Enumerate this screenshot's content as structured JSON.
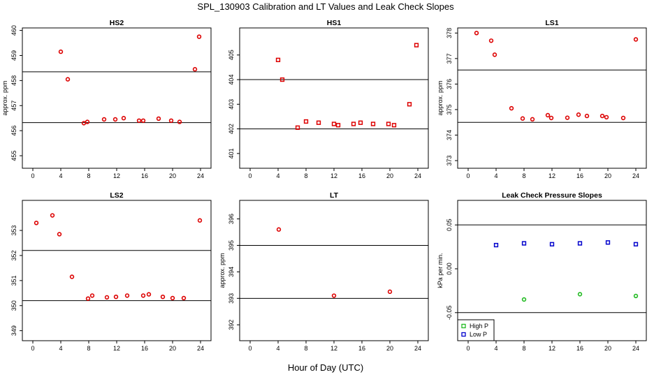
{
  "figure": {
    "title": "SPL_130903  Calibration and LT Values and Leak Check Slopes",
    "xlabel": "Hour of Day (UTC)"
  },
  "chart_data": [
    {
      "type": "scatter",
      "title": "HS2",
      "ylabel": "approx. ppm",
      "xlim": [
        -1.5,
        25.5
      ],
      "ylim": [
        454.5,
        460.1
      ],
      "xticks": [
        0,
        4,
        8,
        12,
        16,
        20,
        24
      ],
      "yticks": [
        455,
        456,
        457,
        458,
        459,
        460
      ],
      "hlines": [
        458.35,
        456.32
      ],
      "series": [
        {
          "name": "calibration",
          "color": "#dd0000",
          "marker": "circle",
          "x": [
            4.0,
            5.0,
            7.3,
            7.8,
            10.2,
            11.8,
            13.0,
            15.2,
            15.8,
            18.0,
            19.8,
            21.0,
            23.2,
            23.8
          ],
          "y": [
            459.15,
            458.05,
            456.3,
            456.35,
            456.45,
            456.45,
            456.5,
            456.4,
            456.4,
            456.48,
            456.4,
            456.35,
            458.45,
            459.75
          ]
        }
      ]
    },
    {
      "type": "scatter",
      "title": "HS1",
      "ylabel": "",
      "xlim": [
        -1.5,
        25.5
      ],
      "ylim": [
        400.4,
        406.1
      ],
      "xticks": [
        0,
        4,
        8,
        12,
        16,
        20,
        24
      ],
      "yticks": [
        401,
        402,
        403,
        404,
        405
      ],
      "hlines": [
        404.0,
        402.0
      ],
      "series": [
        {
          "name": "calibration",
          "color": "#dd0000",
          "marker": "square",
          "x": [
            4.0,
            4.6,
            6.8,
            8.0,
            9.8,
            12.0,
            12.6,
            14.8,
            15.8,
            17.6,
            19.8,
            20.6,
            22.8,
            23.8
          ],
          "y": [
            404.8,
            404.0,
            402.05,
            402.3,
            402.25,
            402.2,
            402.15,
            402.2,
            402.25,
            402.2,
            402.2,
            402.15,
            403.0,
            405.4
          ]
        }
      ]
    },
    {
      "type": "scatter",
      "title": "LS1",
      "ylabel": "approx. ppm",
      "xlim": [
        -1.5,
        25.5
      ],
      "ylim": [
        372.7,
        378.2
      ],
      "xticks": [
        0,
        4,
        8,
        12,
        16,
        20,
        24
      ],
      "yticks": [
        373,
        374,
        375,
        376,
        377,
        378
      ],
      "hlines": [
        376.55,
        374.5
      ],
      "series": [
        {
          "name": "calibration",
          "color": "#dd0000",
          "marker": "circle",
          "x": [
            1.2,
            3.3,
            3.8,
            6.2,
            7.8,
            9.2,
            11.4,
            11.9,
            14.2,
            15.8,
            17.0,
            19.2,
            19.8,
            22.2,
            24.0
          ],
          "y": [
            378.0,
            377.7,
            377.15,
            375.05,
            374.65,
            374.62,
            374.78,
            374.67,
            374.68,
            374.8,
            374.75,
            374.75,
            374.7,
            374.67,
            377.75
          ]
        }
      ]
    },
    {
      "type": "scatter",
      "title": "LS2",
      "ylabel": "",
      "xlim": [
        -1.5,
        25.5
      ],
      "ylim": [
        348.6,
        354.2
      ],
      "xticks": [
        0,
        4,
        8,
        12,
        16,
        20,
        24
      ],
      "yticks": [
        349,
        350,
        351,
        352,
        353
      ],
      "hlines": [
        352.2,
        350.2
      ],
      "series": [
        {
          "name": "calibration",
          "color": "#dd0000",
          "marker": "circle",
          "x": [
            0.5,
            2.8,
            3.8,
            5.6,
            7.9,
            8.5,
            10.6,
            11.9,
            13.5,
            15.8,
            16.6,
            18.6,
            20.0,
            21.6,
            23.9
          ],
          "y": [
            353.3,
            353.6,
            352.85,
            351.15,
            350.28,
            350.4,
            350.33,
            350.35,
            350.4,
            350.4,
            350.45,
            350.35,
            350.3,
            350.3,
            353.4
          ]
        }
      ]
    },
    {
      "type": "scatter",
      "title": "LT",
      "ylabel": "approx. ppm",
      "xlim": [
        -1.5,
        25.5
      ],
      "ylim": [
        391.4,
        396.7
      ],
      "xticks": [
        0,
        4,
        8,
        12,
        16,
        20,
        24
      ],
      "yticks": [
        392,
        393,
        394,
        395,
        396
      ],
      "hlines": [
        395.0,
        393.0
      ],
      "series": [
        {
          "name": "LT",
          "color": "#dd0000",
          "marker": "circle",
          "x": [
            4.1,
            12.0,
            20.0
          ],
          "y": [
            395.6,
            393.1,
            393.25
          ]
        }
      ]
    },
    {
      "type": "scatter",
      "title": "Leak Check Pressure Slopes",
      "ylabel": "kPa per min.",
      "xlim": [
        -1.5,
        25.5
      ],
      "ylim": [
        -0.082,
        0.078
      ],
      "xticks": [
        0,
        4,
        8,
        12,
        16,
        20,
        24
      ],
      "yticks": [
        -0.05,
        0.0,
        0.05
      ],
      "ytick_labels": [
        "-0.05",
        "0.00",
        "0.05"
      ],
      "hlines": [
        0.05,
        -0.05
      ],
      "legend": {
        "position": "bottom-left",
        "entries": [
          {
            "name": "High P",
            "color": "#22bb22"
          },
          {
            "name": "Low P",
            "color": "#0000cc"
          }
        ]
      },
      "series": [
        {
          "name": "High P",
          "color": "#22bb22",
          "marker": "circle",
          "x": [
            8,
            16,
            24
          ],
          "y": [
            -0.035,
            -0.029,
            -0.031
          ]
        },
        {
          "name": "Low P",
          "color": "#0000cc",
          "marker": "square",
          "x": [
            4,
            8,
            12,
            16,
            20,
            24
          ],
          "y": [
            0.027,
            0.029,
            0.028,
            0.029,
            0.03,
            0.028
          ]
        }
      ]
    }
  ]
}
